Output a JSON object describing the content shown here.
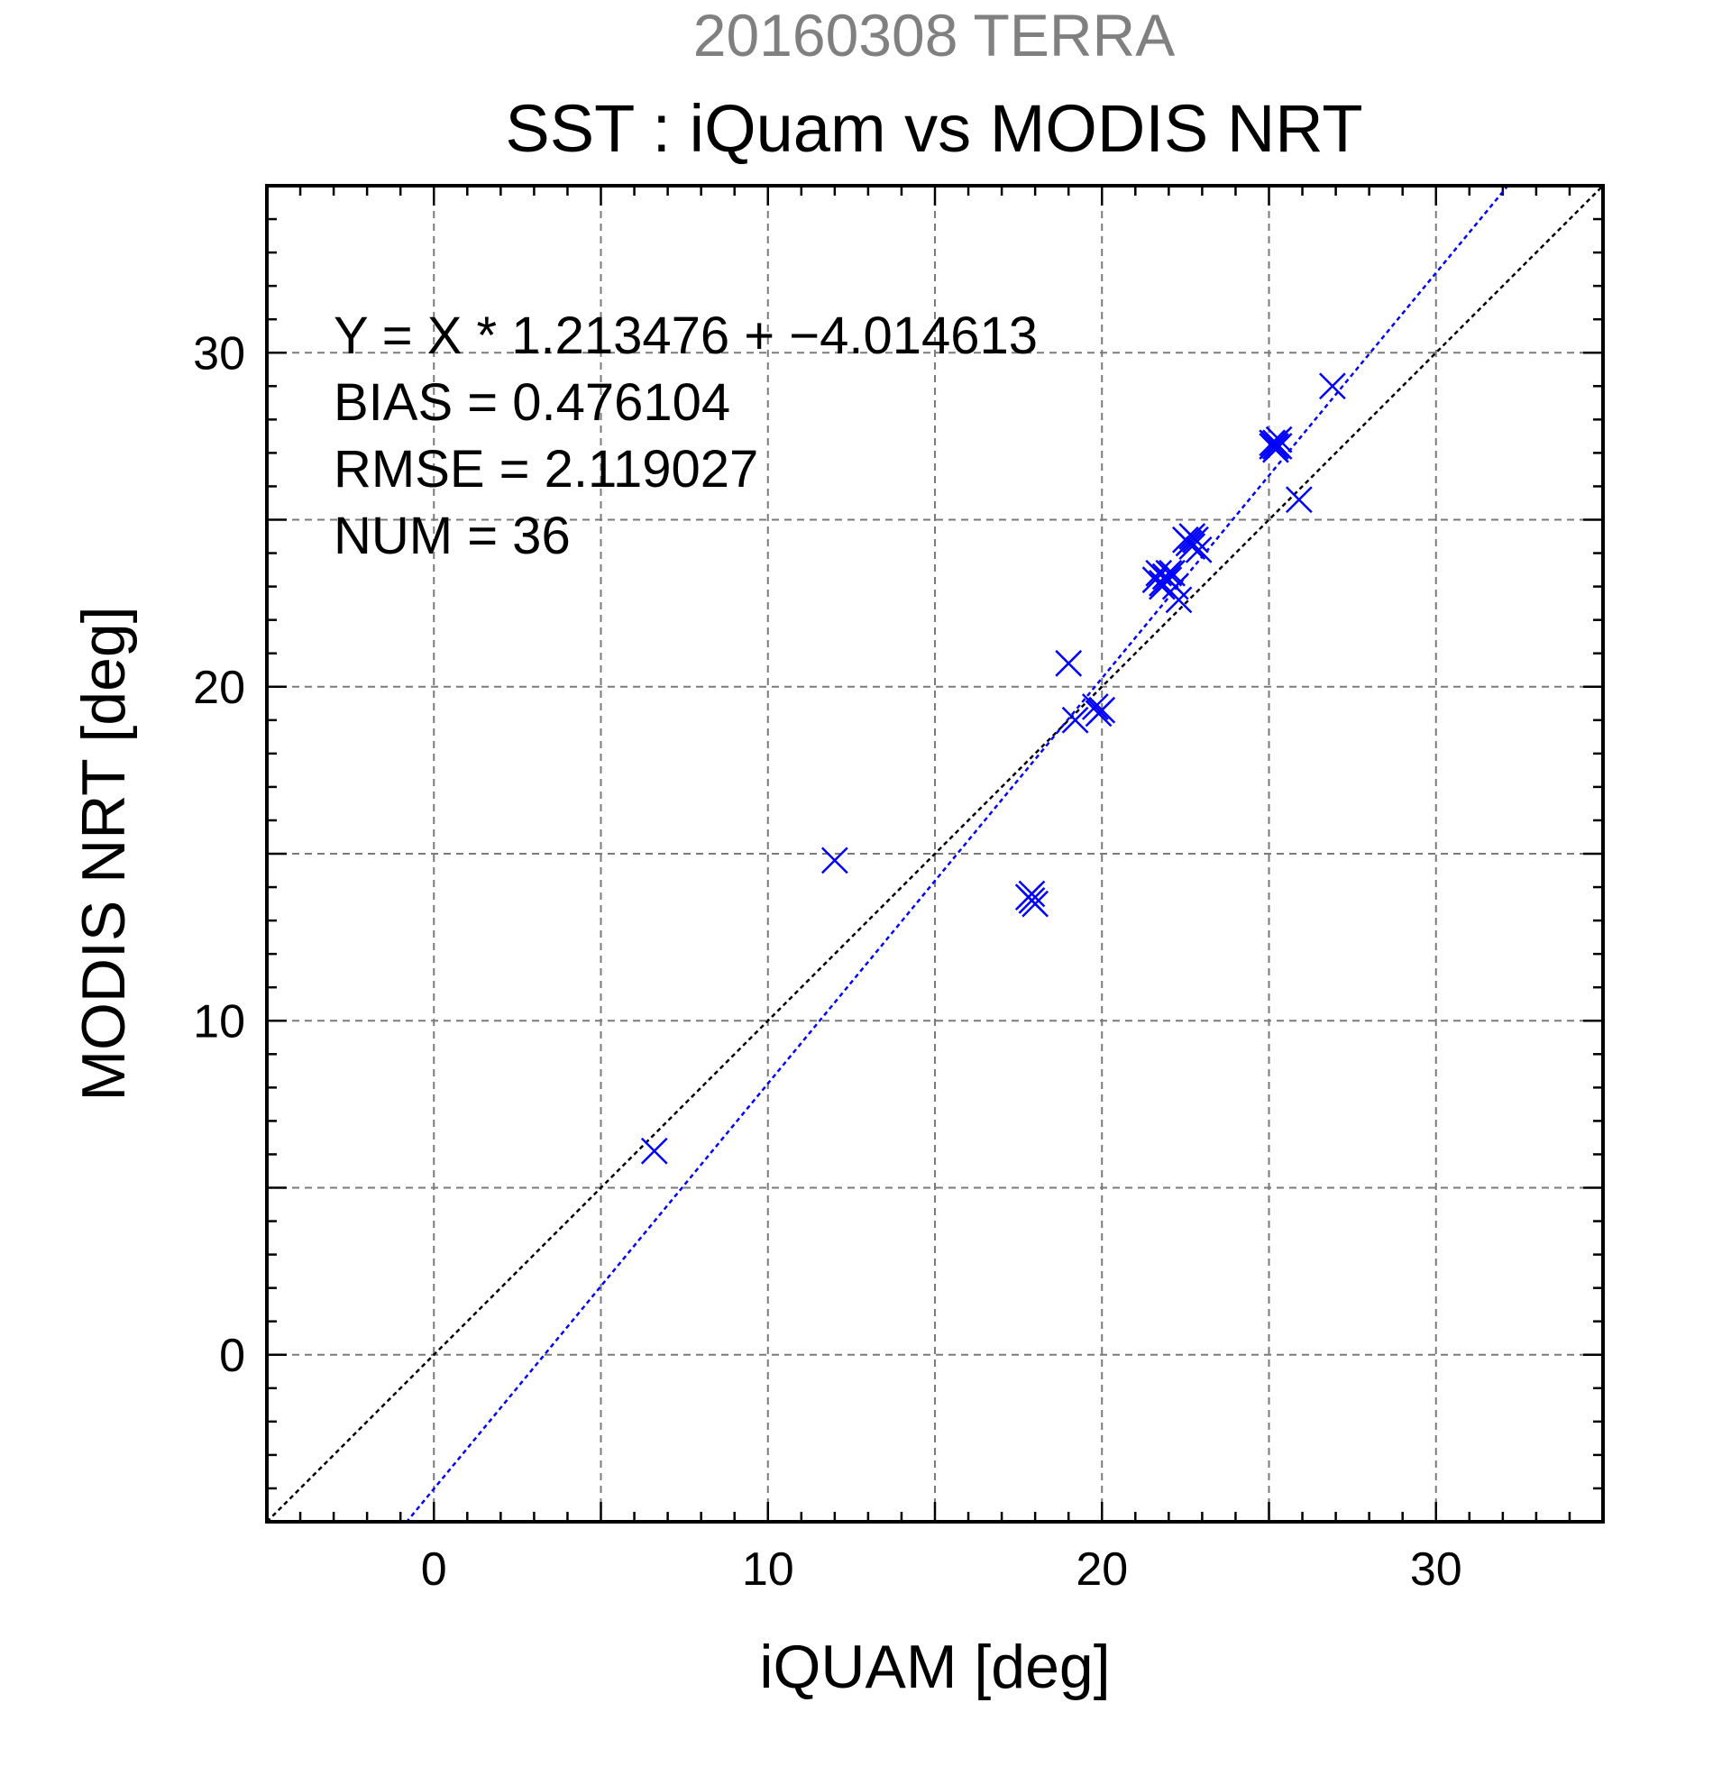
{
  "chart_data": {
    "type": "scatter",
    "subtitle": "20160308 TERRA",
    "title": "SST : iQuam vs MODIS NRT",
    "xlabel": "iQUAM [deg]",
    "ylabel": "MODIS NRT [deg]",
    "xlim": [
      -5,
      35
    ],
    "ylim": [
      -5,
      35
    ],
    "xticks": [
      0,
      10,
      20,
      30
    ],
    "yticks": [
      0,
      10,
      20,
      30
    ],
    "minor_step": 1,
    "grid_step": 5,
    "grid": true,
    "colors": {
      "points": "#0000ff",
      "fit_line": "#0000ff",
      "identity_line": "#000000",
      "subtitle": "#808080"
    },
    "stats": {
      "equation": "Y = X * 1.213476 + −4.014613",
      "bias": "BIAS = 0.476104",
      "rmse": "RMSE = 2.119027",
      "num": "NUM = 36"
    },
    "fit": {
      "slope": 1.213476,
      "intercept": -4.014613
    },
    "identity": {
      "slope": 1,
      "intercept": 0
    },
    "series": [
      {
        "marker": "x",
        "points": [
          [
            6.6,
            6.1
          ],
          [
            12.0,
            14.8
          ],
          [
            17.9,
            13.8
          ],
          [
            17.9,
            13.6
          ],
          [
            18.0,
            13.5
          ],
          [
            17.8,
            13.7
          ],
          [
            19.0,
            20.7
          ],
          [
            19.2,
            19.0
          ],
          [
            19.8,
            19.4
          ],
          [
            20.0,
            19.3
          ],
          [
            19.9,
            19.2
          ],
          [
            21.6,
            23.2
          ],
          [
            21.7,
            23.4
          ],
          [
            21.8,
            23.1
          ],
          [
            21.9,
            23.3
          ],
          [
            22.0,
            23.2
          ],
          [
            22.1,
            23.4
          ],
          [
            22.2,
            23.0
          ],
          [
            21.8,
            23.0
          ],
          [
            22.0,
            23.4
          ],
          [
            22.3,
            22.6
          ],
          [
            22.6,
            24.3
          ],
          [
            22.7,
            24.5
          ],
          [
            22.8,
            24.4
          ],
          [
            22.9,
            24.1
          ],
          [
            22.7,
            24.2
          ],
          [
            22.5,
            24.4
          ],
          [
            25.1,
            27.3
          ],
          [
            25.2,
            27.2
          ],
          [
            25.3,
            27.4
          ],
          [
            25.2,
            27.1
          ],
          [
            25.3,
            27.2
          ],
          [
            25.1,
            27.2
          ],
          [
            25.2,
            27.3
          ],
          [
            25.9,
            25.6
          ],
          [
            26.9,
            29.0
          ]
        ]
      }
    ]
  }
}
